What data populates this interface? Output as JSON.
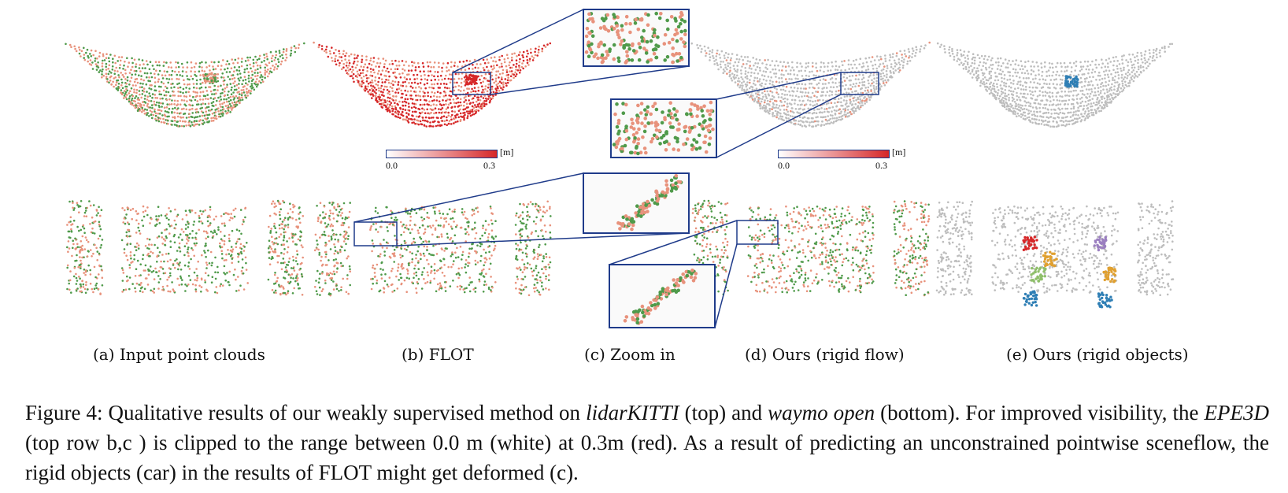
{
  "subfigures": [
    {
      "id": "a",
      "label": "(a) Input point clouds"
    },
    {
      "id": "b",
      "label": "(b) FLOT"
    },
    {
      "id": "c",
      "label": "(c) Zoom in"
    },
    {
      "id": "d",
      "label": "(d) Ours (rigid flow)"
    },
    {
      "id": "e",
      "label": "(e) Ours (rigid objects)"
    }
  ],
  "colorbars": [
    {
      "unit": "[m]",
      "min": "0.0",
      "max": "0.3",
      "color_low": "#ffffff",
      "color_high": "#d62728"
    },
    {
      "unit": "[m]",
      "min": "0.0",
      "max": "0.3",
      "color_low": "#ffffff",
      "color_high": "#d62728"
    }
  ],
  "colors": {
    "zoom_frame": "#1f3b8a",
    "point_green": "#4f9a4a",
    "point_salmon": "#e8927c",
    "point_red": "#d62728",
    "point_gray": "#bdbdbd",
    "point_blue": "#2f7fb5"
  },
  "caption": {
    "prefix": "Figure 4: Qualitative results of our weakly supervised method on ",
    "dataset1": "lidarKITTI",
    "mid1": " (top) and ",
    "dataset2": "waymo open",
    "mid2": " (bottom). For improved visibility, the ",
    "metric": "EPE3D",
    "rest": " (top row b,c ) is clipped to the range between 0.0 m (white) at 0.3m (red). As a result of predicting an unconstrained pointwise sceneflow, the rigid objects (car) in the results of FLOT might get deformed (c)."
  }
}
